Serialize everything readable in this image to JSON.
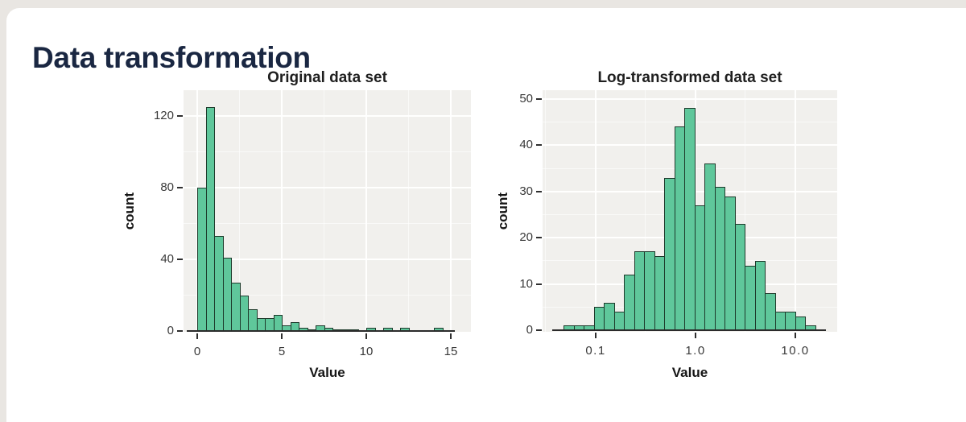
{
  "page": {
    "title": "Data transformation"
  },
  "theme": {
    "page_bg": "#e9e6e2",
    "card_bg": "#ffffff",
    "title_color": "#1a2742",
    "panel_bg": "#f1f0ed",
    "bar_fill": "#5fc79b",
    "bar_edge": "#1d3a2b",
    "axis_color": "#2b2b2b"
  },
  "chart_data": [
    {
      "type": "bar",
      "variant": "histogram",
      "title": "Original data set",
      "xlabel": "Value",
      "ylabel": "count",
      "x_scale": "linear",
      "xlim": [
        -0.7,
        16.2
      ],
      "ylim": [
        0,
        135
      ],
      "x_ticks": [
        0,
        5,
        10,
        15
      ],
      "x_tick_labels": [
        "0",
        "5",
        "10",
        "15"
      ],
      "y_ticks": [
        0,
        40,
        80,
        120
      ],
      "y_tick_labels": [
        "0",
        "40",
        "80",
        "120"
      ],
      "x_minor": [
        2.5,
        7.5,
        12.5
      ],
      "y_minor": [
        20,
        60,
        100
      ],
      "grid": true,
      "legend": false,
      "bins": {
        "start": 0,
        "width": 0.5
      },
      "counts": [
        80,
        125,
        53,
        41,
        27,
        20,
        12,
        7,
        7,
        9,
        3,
        5,
        2,
        1,
        3,
        2,
        1,
        1,
        1,
        0,
        2,
        0,
        2,
        0,
        2,
        0,
        0,
        0,
        2,
        0
      ]
    },
    {
      "type": "bar",
      "variant": "histogram",
      "title": "Log-transformed data set",
      "xlabel": "Value",
      "ylabel": "count",
      "x_scale": "log10",
      "xlim_log10": [
        -1.58,
        1.42
      ],
      "ylim": [
        0,
        52
      ],
      "x_ticks": [
        0.1,
        1.0,
        10.0
      ],
      "x_tick_labels": [
        "0.1",
        "1.0",
        "10.0"
      ],
      "y_ticks": [
        0,
        10,
        20,
        30,
        40,
        50
      ],
      "y_tick_labels": [
        "0",
        "10",
        "20",
        "30",
        "40",
        "50"
      ],
      "x_minor": [
        0.0316,
        0.316,
        3.16
      ],
      "y_minor": [
        5,
        15,
        25,
        35,
        45
      ],
      "grid": true,
      "legend": false,
      "bins_log10": {
        "start": -1.32,
        "width": 0.101
      },
      "counts": [
        1,
        1,
        1,
        5,
        6,
        4,
        12,
        17,
        17,
        16,
        33,
        44,
        48,
        27,
        36,
        31,
        29,
        23,
        14,
        15,
        8,
        4,
        4,
        3,
        1
      ]
    }
  ]
}
